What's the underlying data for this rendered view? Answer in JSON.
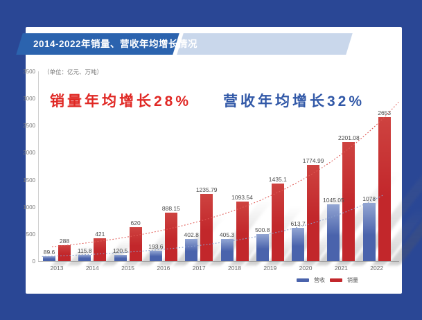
{
  "window": {
    "frame_color": "#2A4795",
    "card_color": "#FFFFFF"
  },
  "header": {
    "title": "2014-2022年销量、营收年均增长情况",
    "ribbon_color": "#2B63AE",
    "ribbon_light_color": "#C9D7EB"
  },
  "annotations": {
    "sales_slogan": "销量年均增长28%",
    "revenue_slogan": "营收年均增长32%",
    "sales_slogan_color": "#E02824",
    "revenue_slogan_color": "#3158A7",
    "unit_label": "（单位：亿元、万吨）"
  },
  "legend": {
    "revenue_label": "营收",
    "sales_label": "销量",
    "revenue_color": "#4A63AC",
    "sales_color": "#C2272B"
  },
  "chart_data": {
    "type": "bar",
    "title": "2014-2022年销量、营收年均增长情况",
    "categories": [
      "2013",
      "2014",
      "2015",
      "2016",
      "2017",
      "2018",
      "2019",
      "2020",
      "2021",
      "2022"
    ],
    "series": [
      {
        "name": "营收",
        "color": "#4A63AC",
        "color_top": "#93A6D3",
        "trend_color": "#8AA0CE",
        "cagr": 0.32,
        "values": [
          89.6,
          115.8,
          120.5,
          193.6,
          402.8,
          405.3,
          500.8,
          613.7,
          1045.05,
          1078
        ]
      },
      {
        "name": "销量",
        "color": "#C2272B",
        "color_top": "#CE4340",
        "trend_color": "#E05A55",
        "cagr": 0.28,
        "values": [
          288,
          421,
          620,
          888.15,
          1235.79,
          1093.54,
          1435.1,
          1774.99,
          2201.08,
          2653
        ]
      }
    ],
    "ylim": [
      0,
      3500
    ],
    "ytick_step": 500,
    "grid": false,
    "legend_position": "bottom",
    "trend_lines": true
  }
}
